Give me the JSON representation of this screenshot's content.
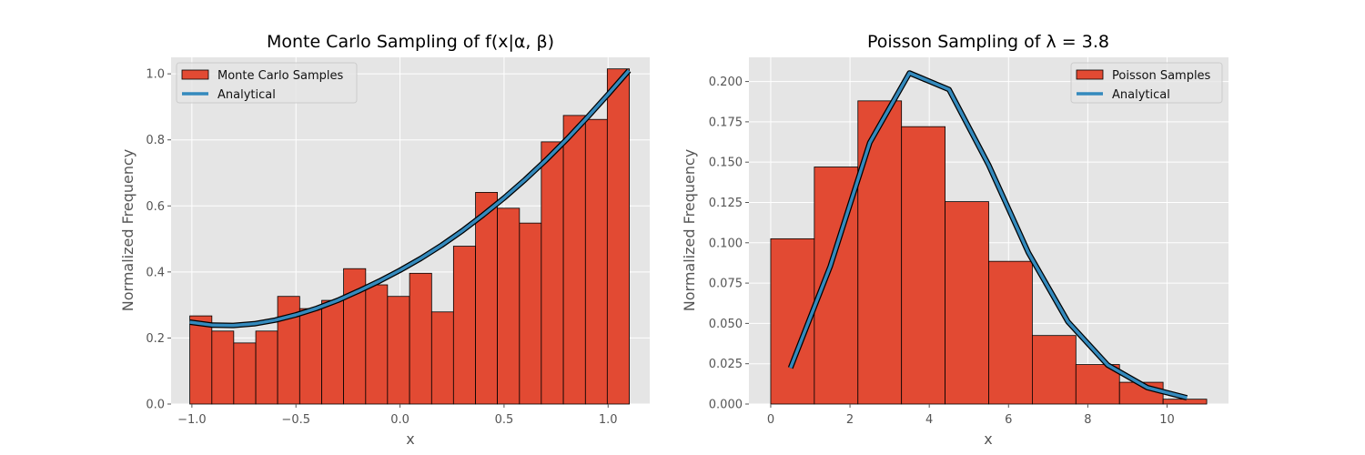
{
  "colors": {
    "figure_background": "#ffffff",
    "axes_background": "#e5e5e5",
    "grid": "#ffffff",
    "bar_fill": "#e24a33",
    "bar_edge": "#000000",
    "line": "#348abd",
    "line_outline": "#000000",
    "tick_text": "#555555"
  },
  "chart_data": [
    {
      "type": "bar",
      "title": "Monte Carlo Sampling of f(x|α, β)",
      "xlabel": "x",
      "ylabel": "Normalized Frequency",
      "xlim": [
        -1.1,
        1.2
      ],
      "ylim": [
        0,
        1.05
      ],
      "xticks": [
        -1.0,
        -0.5,
        0.0,
        0.5,
        1.0
      ],
      "xtick_labels": [
        "−1.0",
        "−0.5",
        "0.0",
        "0.5",
        "1.0"
      ],
      "yticks": [
        0.0,
        0.2,
        0.4,
        0.6,
        0.8,
        1.0
      ],
      "ytick_labels": [
        "0.0",
        "0.2",
        "0.4",
        "0.6",
        "0.8",
        "1.0"
      ],
      "grid": true,
      "legend_position": "top-left",
      "series": [
        {
          "name": "Monte Carlo Samples",
          "kind": "histogram",
          "bin_edges": [
            -1.01,
            -0.904,
            -0.799,
            -0.693,
            -0.588,
            -0.482,
            -0.376,
            -0.271,
            -0.165,
            -0.06,
            0.046,
            0.152,
            0.257,
            0.363,
            0.468,
            0.574,
            0.679,
            0.785,
            0.891,
            0.996,
            1.102
          ],
          "values": [
            0.267,
            0.221,
            0.185,
            0.221,
            0.326,
            0.289,
            0.314,
            0.41,
            0.361,
            0.326,
            0.396,
            0.279,
            0.478,
            0.641,
            0.593,
            0.548,
            0.794,
            0.874,
            0.862,
            1.015
          ]
        },
        {
          "name": "Analytical",
          "kind": "line",
          "x": [
            -1.01,
            -0.9,
            -0.8,
            -0.7,
            -0.6,
            -0.5,
            -0.4,
            -0.3,
            -0.2,
            -0.1,
            0.0,
            0.1,
            0.2,
            0.3,
            0.4,
            0.5,
            0.6,
            0.7,
            0.8,
            0.9,
            1.0,
            1.1
          ],
          "y": [
            0.248,
            0.239,
            0.238,
            0.243,
            0.254,
            0.27,
            0.29,
            0.314,
            0.342,
            0.372,
            0.405,
            0.441,
            0.481,
            0.525,
            0.573,
            0.624,
            0.679,
            0.738,
            0.801,
            0.868,
            0.938,
            1.01
          ]
        }
      ]
    },
    {
      "type": "bar",
      "title": "Poisson Sampling of λ = 3.8",
      "xlabel": "x",
      "ylabel": "Normalized Frequency",
      "xlim": [
        -0.55,
        11.55
      ],
      "ylim": [
        0,
        0.215
      ],
      "xticks": [
        0,
        2,
        4,
        6,
        8,
        10
      ],
      "xtick_labels": [
        "0",
        "2",
        "4",
        "6",
        "8",
        "10"
      ],
      "yticks": [
        0.0,
        0.025,
        0.05,
        0.075,
        0.1,
        0.125,
        0.15,
        0.175,
        0.2
      ],
      "ytick_labels": [
        "0.000",
        "0.025",
        "0.050",
        "0.075",
        "0.100",
        "0.125",
        "0.150",
        "0.175",
        "0.200"
      ],
      "grid": true,
      "legend_position": "top-right",
      "series": [
        {
          "name": "Poisson Samples",
          "kind": "histogram",
          "bin_edges": [
            0,
            1.1,
            2.2,
            3.3,
            4.4,
            5.5,
            6.6,
            7.7,
            8.8,
            9.9,
            11.0
          ],
          "values": [
            0.1025,
            0.147,
            0.188,
            0.172,
            0.1255,
            0.0885,
            0.0425,
            0.0245,
            0.0135,
            0.003
          ]
        },
        {
          "name": "Analytical",
          "kind": "line",
          "x": [
            0.5,
            1.5,
            2.5,
            3.5,
            4.5,
            5.5,
            6.5,
            7.5,
            8.5,
            9.5,
            10.5
          ],
          "y": [
            0.0224,
            0.0853,
            0.1621,
            0.2053,
            0.195,
            0.1482,
            0.0939,
            0.051,
            0.0242,
            0.0102,
            0.0039
          ]
        }
      ]
    }
  ]
}
